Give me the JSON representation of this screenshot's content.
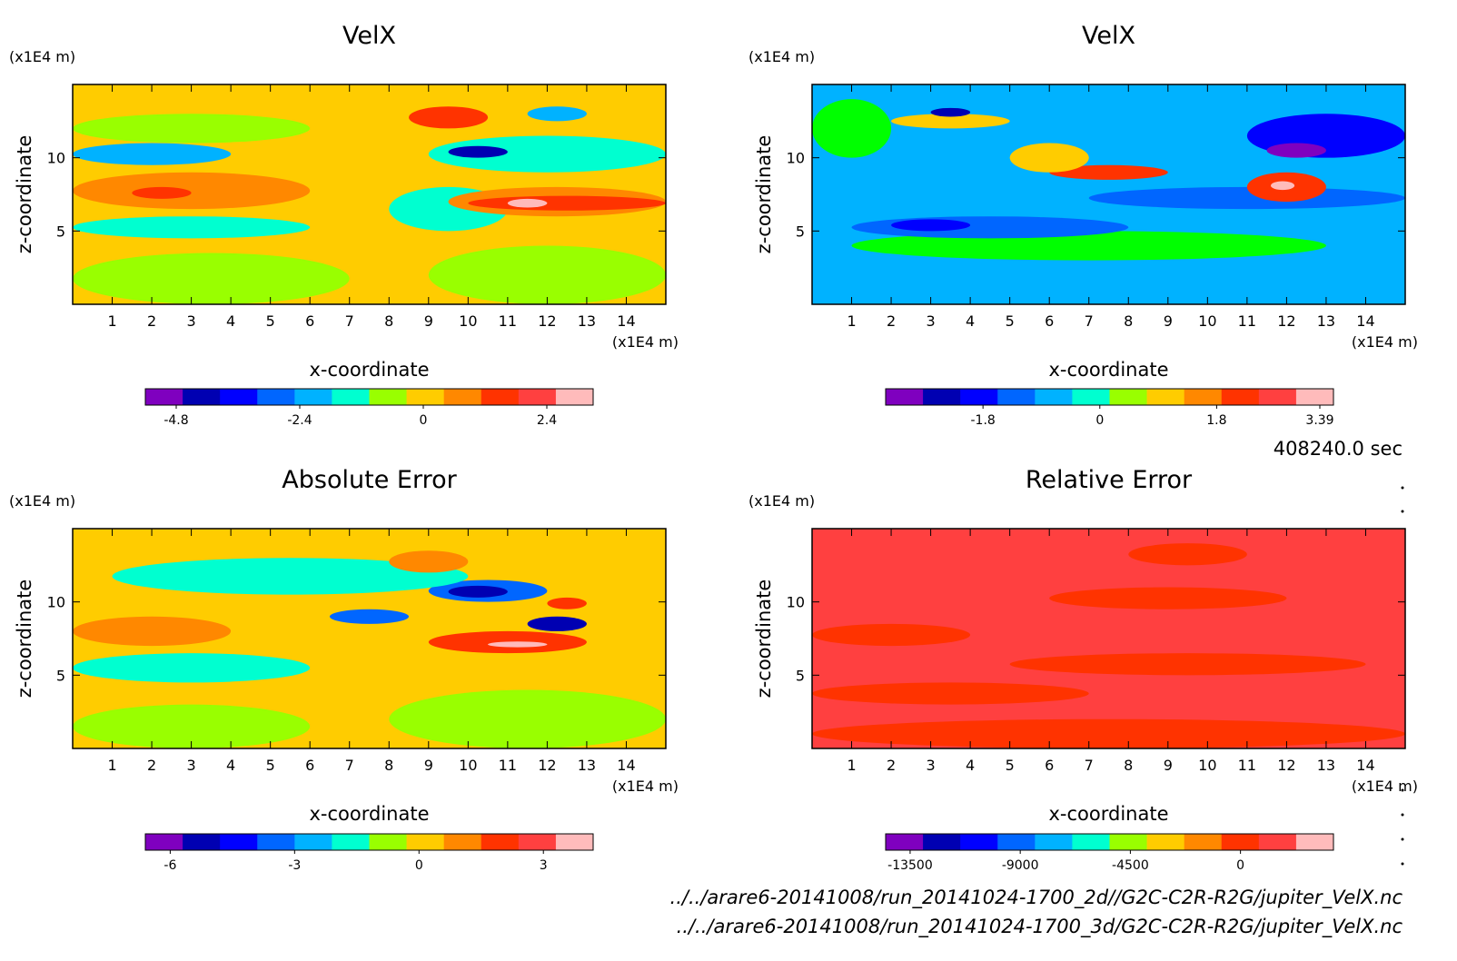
{
  "time_label": "408240.0 sec",
  "footer": {
    "line1": "../../arare6-20141008/run_20141024-1700_2d//G2C-C2R-R2G/jupiter_VelX.nc",
    "line2": "../../arare6-20141008/run_20141024-1700_3d/G2C-C2R-R2G/jupiter_VelX.nc"
  },
  "colors": {
    "scale": [
      "#7f00bf",
      "#0000b2",
      "#0000ff",
      "#0066ff",
      "#00b2ff",
      "#00ffd0",
      "#99ff00",
      "#ffcc00",
      "#ff8800",
      "#ff3300",
      "#ff4040",
      "#ffbbbb"
    ]
  },
  "chart_data": [
    {
      "type": "heatmap",
      "title": "VelX",
      "xlabel": "x-coordinate",
      "ylabel": "z-coordinate",
      "x_unit": "(x1E4 m)",
      "y_unit": "(x1E4 m)",
      "xlim": [
        0,
        15
      ],
      "ylim": [
        0,
        15
      ],
      "x_ticks": [
        "1",
        "2",
        "3",
        "4",
        "5",
        "6",
        "7",
        "8",
        "9",
        "10",
        "11",
        "12",
        "13",
        "14"
      ],
      "y_ticks": [
        "5",
        "10"
      ],
      "colorbar": {
        "ticks": [
          "-4.8",
          "-2.4",
          "0",
          "2.4"
        ],
        "tick_values": [
          -4.8,
          -2.4,
          0,
          2.4
        ],
        "range": [
          -5.4,
          3.3
        ]
      },
      "background": "#ffcc00",
      "regions": [
        {
          "x": [
            0,
            7
          ],
          "y": [
            0,
            3.5
          ],
          "color": "#99ff00"
        },
        {
          "x": [
            9,
            15
          ],
          "y": [
            0,
            4
          ],
          "color": "#99ff00"
        },
        {
          "x": [
            0,
            6
          ],
          "y": [
            4.5,
            6
          ],
          "color": "#00ffd0"
        },
        {
          "x": [
            0,
            6
          ],
          "y": [
            6.5,
            9
          ],
          "color": "#ff8800"
        },
        {
          "x": [
            1.5,
            3
          ],
          "y": [
            7.2,
            8
          ],
          "color": "#ff3300"
        },
        {
          "x": [
            0,
            4
          ],
          "y": [
            9.5,
            11
          ],
          "color": "#00b2ff"
        },
        {
          "x": [
            0,
            6
          ],
          "y": [
            11,
            13
          ],
          "color": "#99ff00"
        },
        {
          "x": [
            8,
            11
          ],
          "y": [
            5,
            8
          ],
          "color": "#00ffd0"
        },
        {
          "x": [
            9.5,
            15
          ],
          "y": [
            6,
            8
          ],
          "color": "#ff8800"
        },
        {
          "x": [
            10,
            15
          ],
          "y": [
            6.4,
            7.4
          ],
          "color": "#ff3300"
        },
        {
          "x": [
            11,
            12
          ],
          "y": [
            6.6,
            7.2
          ],
          "color": "#ffbbbb"
        },
        {
          "x": [
            9,
            15
          ],
          "y": [
            9,
            11.5
          ],
          "color": "#00ffd0"
        },
        {
          "x": [
            9.5,
            11
          ],
          "y": [
            10,
            10.8
          ],
          "color": "#0000b2"
        },
        {
          "x": [
            8.5,
            10.5
          ],
          "y": [
            12,
            13.5
          ],
          "color": "#ff3300"
        },
        {
          "x": [
            11.5,
            13
          ],
          "y": [
            12.5,
            13.5
          ],
          "color": "#00b2ff"
        }
      ]
    },
    {
      "type": "heatmap",
      "title": "VelX",
      "xlabel": "x-coordinate",
      "ylabel": "z-coordinate",
      "x_unit": "(x1E4 m)",
      "y_unit": "(x1E4 m)",
      "xlim": [
        0,
        15
      ],
      "ylim": [
        0,
        15
      ],
      "x_ticks": [
        "1",
        "2",
        "3",
        "4",
        "5",
        "6",
        "7",
        "8",
        "9",
        "10",
        "11",
        "12",
        "13",
        "14"
      ],
      "y_ticks": [
        "5",
        "10"
      ],
      "colorbar": {
        "ticks": [
          "-1.8",
          "0",
          "1.8",
          "3.39"
        ],
        "tick_values": [
          -1.8,
          0,
          1.8,
          3.39
        ],
        "range": [
          -3.3,
          3.6
        ]
      },
      "background": "#00b2ff",
      "regions": [
        {
          "x": [
            0,
            15
          ],
          "y": [
            0,
            3
          ],
          "color": "#00b2ff"
        },
        {
          "x": [
            1,
            13
          ],
          "y": [
            3,
            5
          ],
          "color": "#00ff00"
        },
        {
          "x": [
            1,
            8
          ],
          "y": [
            4.5,
            6
          ],
          "color": "#0066ff"
        },
        {
          "x": [
            2,
            4
          ],
          "y": [
            5,
            5.8
          ],
          "color": "#0000ff"
        },
        {
          "x": [
            7,
            15
          ],
          "y": [
            6.5,
            8
          ],
          "color": "#0066ff"
        },
        {
          "x": [
            6,
            9
          ],
          "y": [
            8.5,
            9.5
          ],
          "color": "#ff3300"
        },
        {
          "x": [
            5,
            7
          ],
          "y": [
            9,
            11
          ],
          "color": "#ffcc00"
        },
        {
          "x": [
            11,
            13
          ],
          "y": [
            7,
            9
          ],
          "color": "#ff3300"
        },
        {
          "x": [
            11.6,
            12.2
          ],
          "y": [
            7.8,
            8.4
          ],
          "color": "#ffbbbb"
        },
        {
          "x": [
            2,
            5
          ],
          "y": [
            12,
            13
          ],
          "color": "#ffcc00"
        },
        {
          "x": [
            3,
            4
          ],
          "y": [
            12.8,
            13.4
          ],
          "color": "#0000b2"
        },
        {
          "x": [
            11,
            15
          ],
          "y": [
            10,
            13
          ],
          "color": "#0000ff"
        },
        {
          "x": [
            11.5,
            13
          ],
          "y": [
            10,
            11
          ],
          "color": "#7f00bf"
        },
        {
          "x": [
            0,
            2
          ],
          "y": [
            10,
            14
          ],
          "color": "#00ff00"
        }
      ]
    },
    {
      "type": "heatmap",
      "title": "Absolute Error",
      "xlabel": "x-coordinate",
      "ylabel": "z-coordinate",
      "x_unit": "(x1E4 m)",
      "y_unit": "(x1E4 m)",
      "xlim": [
        0,
        15
      ],
      "ylim": [
        0,
        15
      ],
      "x_ticks": [
        "1",
        "2",
        "3",
        "4",
        "5",
        "6",
        "7",
        "8",
        "9",
        "10",
        "11",
        "12",
        "13",
        "14"
      ],
      "y_ticks": [
        "5",
        "10"
      ],
      "colorbar": {
        "ticks": [
          "-6",
          "-3",
          "0",
          "3"
        ],
        "tick_values": [
          -6,
          -3,
          0,
          3
        ],
        "range": [
          -6.6,
          4.2
        ]
      },
      "background": "#ffcc00",
      "regions": [
        {
          "x": [
            8,
            15
          ],
          "y": [
            0,
            4
          ],
          "color": "#99ff00"
        },
        {
          "x": [
            0,
            6
          ],
          "y": [
            0,
            3
          ],
          "color": "#99ff00"
        },
        {
          "x": [
            0,
            6
          ],
          "y": [
            4.5,
            6.5
          ],
          "color": "#00ffd0"
        },
        {
          "x": [
            0,
            4
          ],
          "y": [
            7,
            9
          ],
          "color": "#ff8800"
        },
        {
          "x": [
            9,
            13
          ],
          "y": [
            6.5,
            8
          ],
          "color": "#ff3300"
        },
        {
          "x": [
            10.5,
            12
          ],
          "y": [
            6.9,
            7.3
          ],
          "color": "#ffbbbb"
        },
        {
          "x": [
            6.5,
            8.5
          ],
          "y": [
            8.5,
            9.5
          ],
          "color": "#0066ff"
        },
        {
          "x": [
            9,
            12
          ],
          "y": [
            10,
            11.5
          ],
          "color": "#0066ff"
        },
        {
          "x": [
            9.5,
            11
          ],
          "y": [
            10.3,
            11.1
          ],
          "color": "#0000b2"
        },
        {
          "x": [
            11.5,
            13
          ],
          "y": [
            8,
            9
          ],
          "color": "#0000b2"
        },
        {
          "x": [
            1,
            10
          ],
          "y": [
            10.5,
            13
          ],
          "color": "#00ffd0"
        },
        {
          "x": [
            8,
            10
          ],
          "y": [
            12,
            13.5
          ],
          "color": "#ff8800"
        },
        {
          "x": [
            12,
            13
          ],
          "y": [
            9.5,
            10.3
          ],
          "color": "#ff3300"
        }
      ]
    },
    {
      "type": "heatmap",
      "title": "Relative Error",
      "xlabel": "x-coordinate",
      "ylabel": "z-coordinate",
      "x_unit": "(x1E4 m)",
      "y_unit": "(x1E4 m)",
      "xlim": [
        0,
        15
      ],
      "ylim": [
        0,
        15
      ],
      "x_ticks": [
        "1",
        "2",
        "3",
        "4",
        "5",
        "6",
        "7",
        "8",
        "9",
        "10",
        "11",
        "12",
        "13",
        "14"
      ],
      "y_ticks": [
        "5",
        "10"
      ],
      "colorbar": {
        "ticks": [
          "-13500",
          "-9000",
          "-4500",
          "0"
        ],
        "tick_values": [
          -13500,
          -9000,
          -4500,
          0
        ],
        "range": [
          -14500,
          3800
        ]
      },
      "background": "#ff4040",
      "regions": [
        {
          "x": [
            0,
            15
          ],
          "y": [
            0,
            2
          ],
          "color": "#ff3300"
        },
        {
          "x": [
            0,
            7
          ],
          "y": [
            3,
            4.5
          ],
          "color": "#ff3300"
        },
        {
          "x": [
            5,
            14
          ],
          "y": [
            5,
            6.5
          ],
          "color": "#ff3300"
        },
        {
          "x": [
            0,
            4
          ],
          "y": [
            7,
            8.5
          ],
          "color": "#ff3300"
        },
        {
          "x": [
            6,
            12
          ],
          "y": [
            9.5,
            11
          ],
          "color": "#ff3300"
        },
        {
          "x": [
            8,
            11
          ],
          "y": [
            12.5,
            14
          ],
          "color": "#ff3300"
        }
      ]
    }
  ]
}
